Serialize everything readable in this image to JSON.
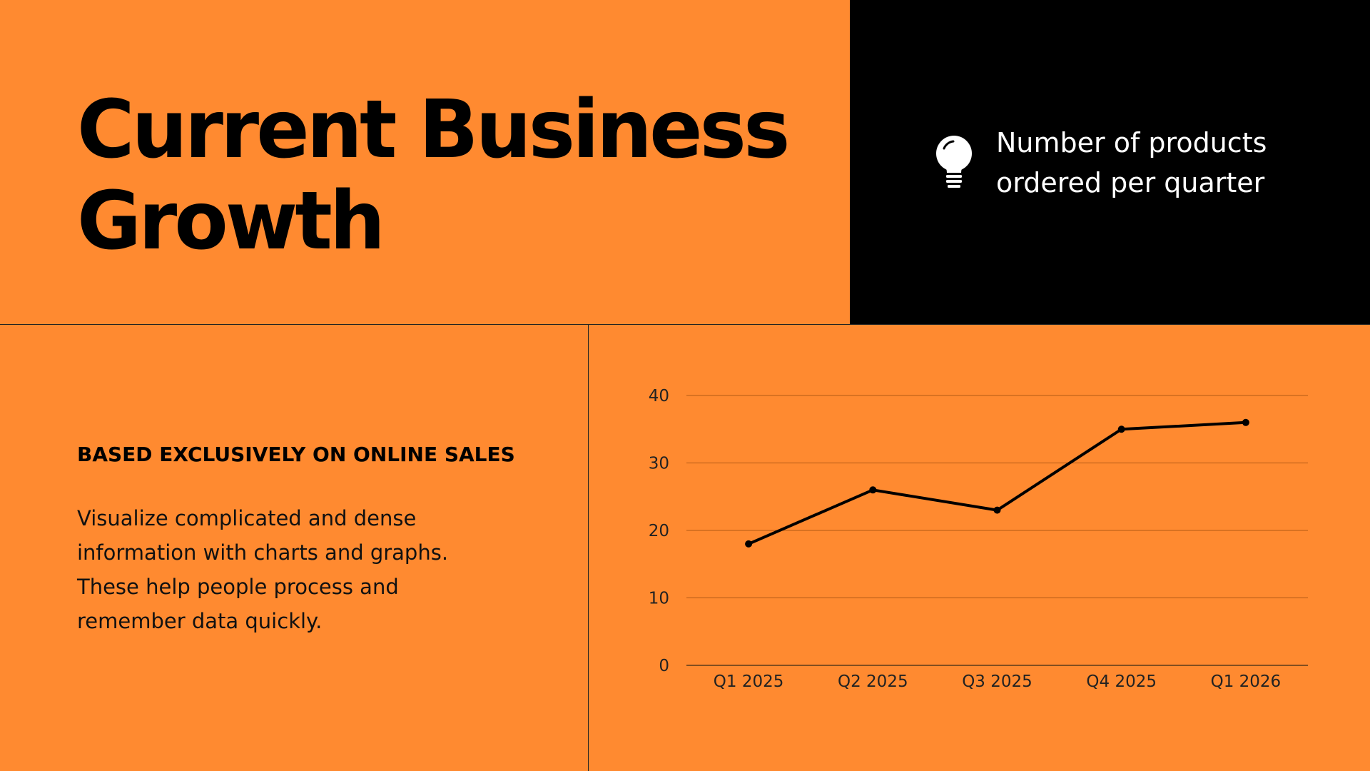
{
  "slide": {
    "title": "Current Business Growth",
    "callout": "Number of products ordered per quarter",
    "callout_icon": "lightbulb-icon",
    "subheading": "BASED EXCLUSIVELY ON ONLINE SALES",
    "body": "Visualize complicated and dense information with charts and graphs. These help people process and remember data quickly."
  },
  "colors": {
    "background": "#FF8A30",
    "panel": "#000000",
    "line": "#000000"
  },
  "chart_data": {
    "type": "line",
    "categories": [
      "Q1 2025",
      "Q2 2025",
      "Q3 2025",
      "Q4 2025",
      "Q1 2026"
    ],
    "series": [
      {
        "values": [
          18,
          26,
          23,
          35,
          36
        ]
      }
    ],
    "ylim": [
      0,
      40
    ],
    "yticks": [
      "0",
      "10",
      "20",
      "30",
      "40"
    ],
    "grid": true,
    "legend": "none"
  }
}
